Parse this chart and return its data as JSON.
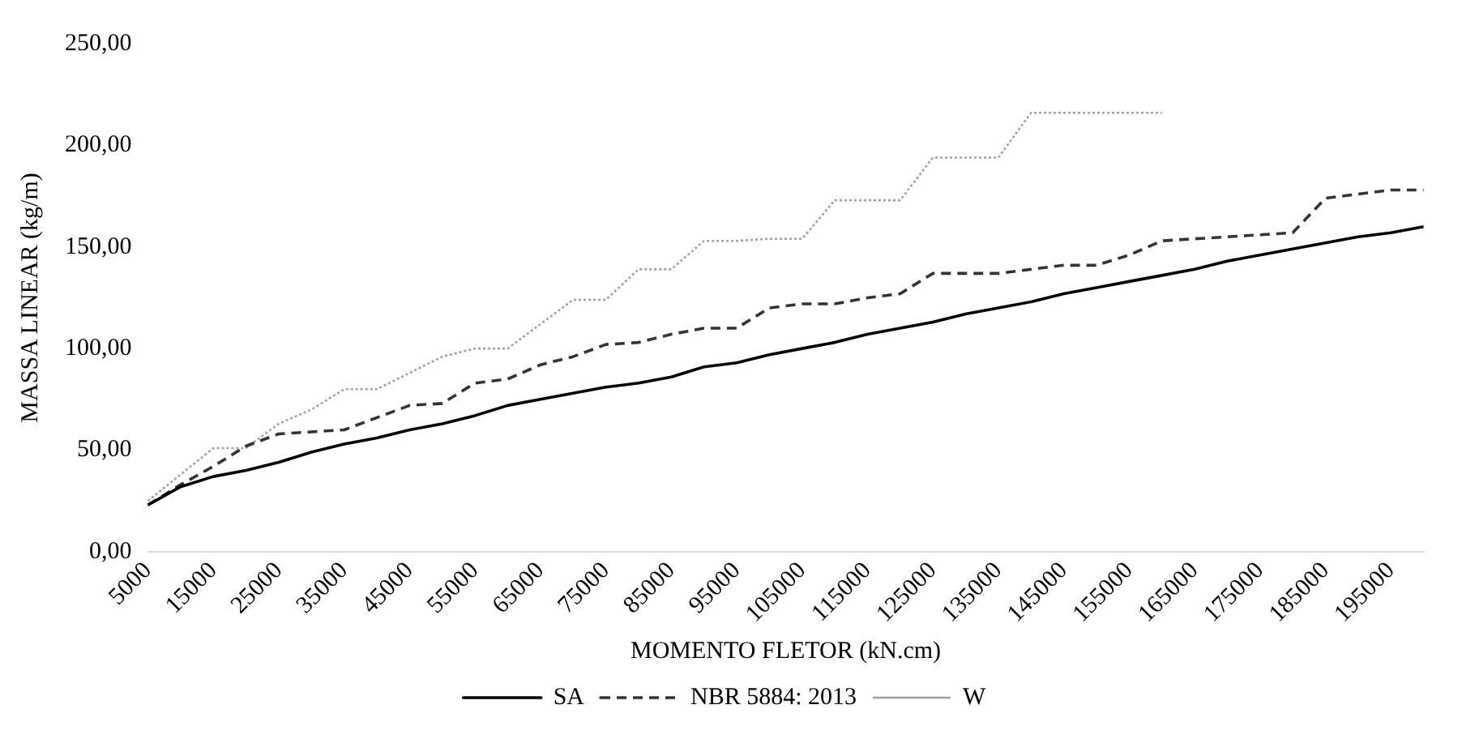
{
  "chart_data": {
    "type": "line",
    "xlabel": "MOMENTO FLETOR (kN.cm)",
    "ylabel": "MASSA LINEAR (kg/m)",
    "categories": [
      "5000",
      null,
      "15000",
      null,
      "25000",
      null,
      "35000",
      null,
      "45000",
      null,
      "55000",
      null,
      "65000",
      null,
      "75000",
      null,
      "85000",
      null,
      "95000",
      null,
      "105000",
      null,
      "115000",
      null,
      "125000",
      null,
      "135000",
      null,
      "145000",
      null,
      "155000",
      null,
      "165000",
      null,
      "175000",
      null,
      "185000",
      null,
      "195000",
      null
    ],
    "ylim": [
      0,
      250
    ],
    "yticks": [
      {
        "value": 0,
        "label": "0,00"
      },
      {
        "value": 50,
        "label": "50,00"
      },
      {
        "value": 100,
        "label": "100,00"
      },
      {
        "value": 150,
        "label": "150,00"
      },
      {
        "value": 200,
        "label": "200,00"
      },
      {
        "value": 250,
        "label": "250,00"
      }
    ],
    "grid": false,
    "legend": "bottom",
    "marker": "none",
    "series": [
      {
        "name": "SA",
        "color": "#000000",
        "line_style": "solid",
        "values": [
          23,
          32,
          37,
          40,
          44,
          49,
          53,
          56,
          60,
          63,
          67,
          72,
          75,
          78,
          81,
          83,
          86,
          91,
          93,
          97,
          100,
          103,
          107,
          110,
          113,
          117,
          120,
          123,
          127,
          130,
          133,
          136,
          139,
          143,
          146,
          149,
          152,
          155,
          157,
          160
        ]
      },
      {
        "name": "NBR 5884: 2013",
        "color": "#333333",
        "line_style": "dashed",
        "values": [
          23,
          33,
          42,
          52,
          58,
          59,
          60,
          66,
          72,
          73,
          83,
          85,
          92,
          96,
          102,
          103,
          107,
          110,
          110,
          120,
          122,
          122,
          125,
          127,
          137,
          137,
          137,
          139,
          141,
          141,
          146,
          153,
          154,
          155,
          156,
          157,
          174,
          176,
          178,
          178
        ]
      },
      {
        "name": "W",
        "color": "#a0a0a0",
        "line_style": "dotted",
        "values": [
          25,
          38,
          51,
          51,
          63,
          70,
          80,
          80,
          88,
          96,
          100,
          100,
          112,
          124,
          124,
          139,
          139,
          153,
          153,
          154,
          154,
          173,
          173,
          173,
          194,
          194,
          194,
          216,
          216,
          216,
          216,
          216,
          null,
          null,
          null,
          null,
          null,
          null,
          null,
          null
        ]
      }
    ]
  }
}
